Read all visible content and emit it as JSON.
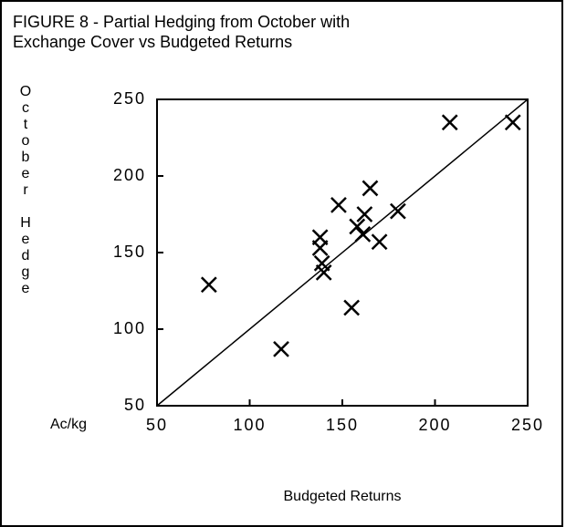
{
  "chart_data": {
    "type": "scatter",
    "title": [
      "FIGURE 8 - Partial Hedging from October with",
      "Exchange Cover vs Budgeted Returns"
    ],
    "y_label": "October Hedge",
    "unit_label": "Ac/kg",
    "x_label": "Budgeted Returns",
    "x": [
      78,
      117,
      138,
      138,
      139,
      140,
      148,
      155,
      158,
      161,
      162,
      165,
      170,
      180,
      208,
      242
    ],
    "y": [
      129,
      87,
      160,
      153,
      143,
      137,
      181,
      114,
      167,
      162,
      175,
      192,
      157,
      177,
      235,
      235
    ],
    "color": "#000000",
    "xlim": [
      50,
      250
    ],
    "xticks": [
      50,
      100,
      150,
      200,
      250
    ],
    "ylim": [
      50,
      250
    ],
    "yticks": [
      50,
      100,
      150,
      200,
      250
    ]
  }
}
